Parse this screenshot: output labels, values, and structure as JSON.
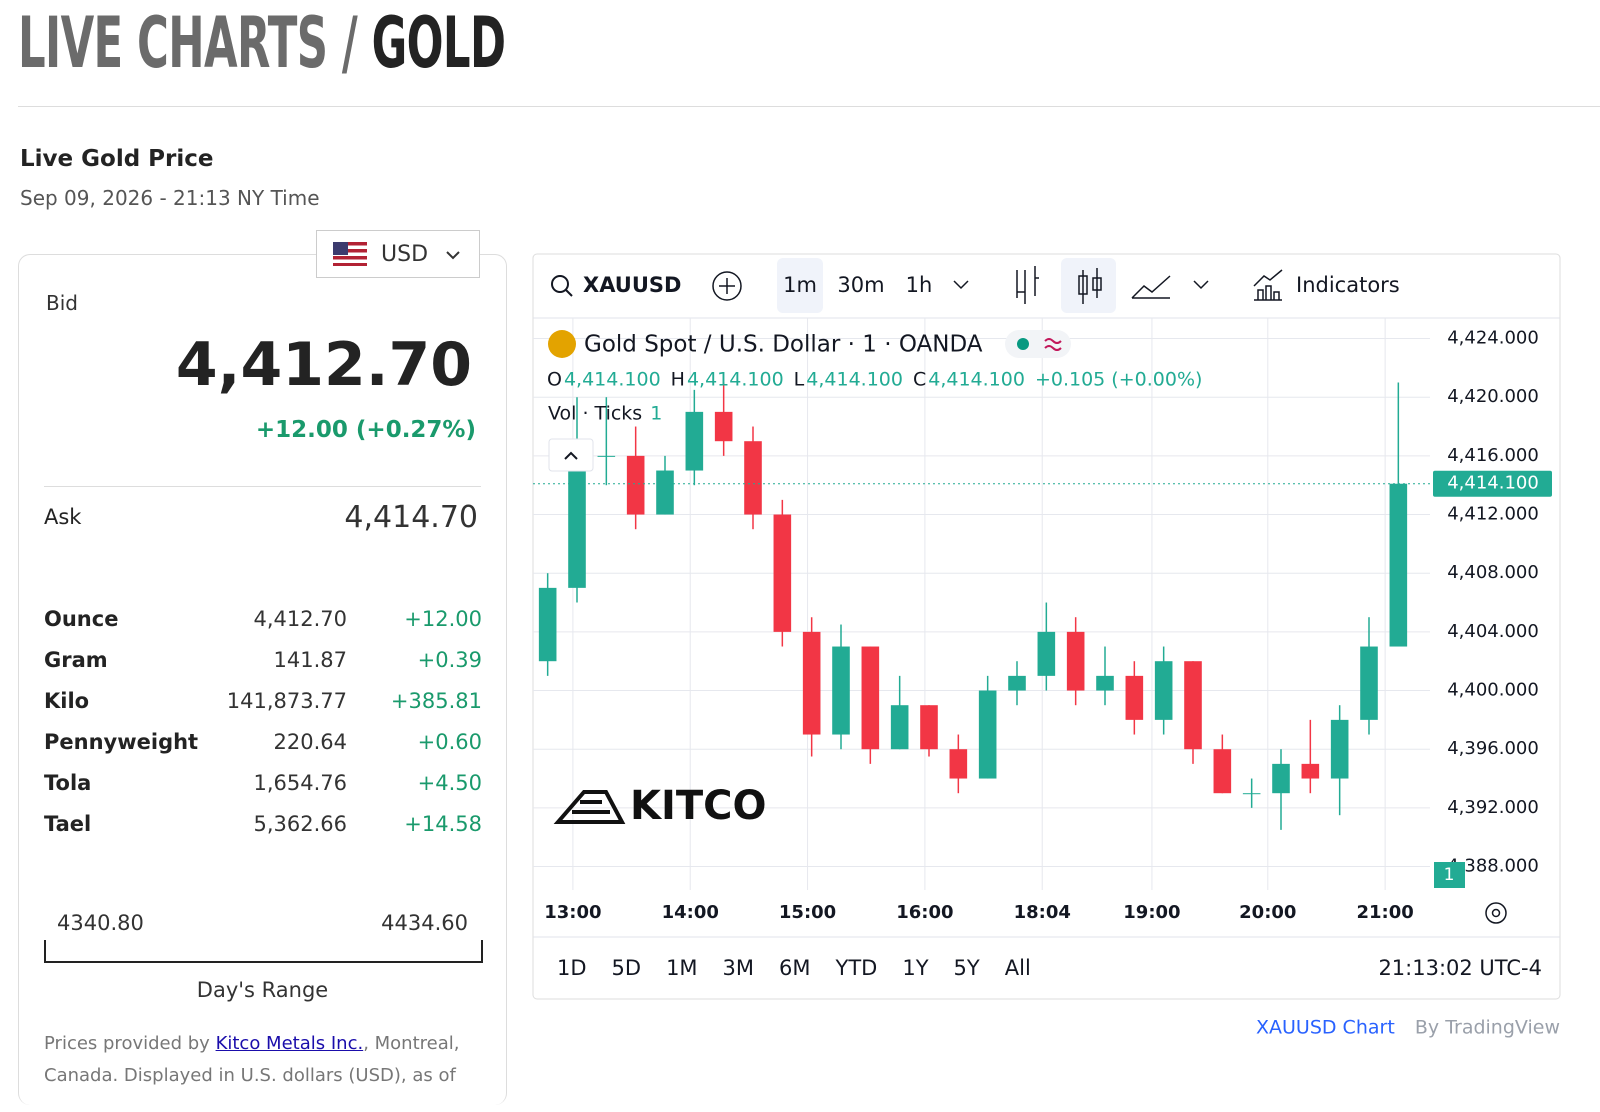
{
  "header": {
    "title_gray": "LIVE CHARTS /",
    "title_dark": "GOLD"
  },
  "price_panel": {
    "title": "Live Gold Price",
    "timestamp": "Sep 09, 2026 - 21:13 NY Time",
    "currency": "USD",
    "bid_label": "Bid",
    "bid": "4,412.70",
    "change": "+12.00 (+0.27%)",
    "ask_label": "Ask",
    "ask": "4,414.70",
    "rows": [
      [
        "Ounce",
        "4,412.70",
        "+12.00"
      ],
      [
        "Gram",
        "141.87",
        "+0.39"
      ],
      [
        "Kilo",
        "141,873.77",
        "+385.81"
      ],
      [
        "Pennyweight",
        "220.64",
        "+0.60"
      ],
      [
        "Tola",
        "1,654.76",
        "+4.50"
      ],
      [
        "Tael",
        "5,362.66",
        "+14.58"
      ]
    ],
    "range_low": "4340.80",
    "range_high": "4434.60",
    "range_label": "Day's Range",
    "note_prefix": "Prices provided by ",
    "note_link": "Kitco Metals Inc.",
    "note_suffix": ", Montreal, Canada. Displayed in U.S. dollars (USD), as of"
  },
  "toolbar": {
    "symbol": "XAUUSD",
    "intervals": [
      "1m",
      "30m",
      "1h"
    ],
    "indicators": "Indicators"
  },
  "chart_data": {
    "type": "candlestick",
    "legend": {
      "name": "Gold Spot / U.S. Dollar · 1 · OANDA",
      "o": "O",
      "o_val": "4,414.100",
      "h": "H",
      "h_val": "4,414.100",
      "l": "L",
      "l_val": "4,414.100",
      "c": "C",
      "c_val": "4,414.100",
      "change": "+0.105 (+0.00%)",
      "vol": "Vol · Ticks",
      "vol_val": "1"
    },
    "watermark": "KITCO",
    "badge": "1",
    "up_color": "#22ab94",
    "down_color": "#f23645",
    "open": [
      4402,
      4407,
      4416,
      4416,
      4412,
      4415,
      4419,
      4417,
      4412,
      4404,
      4397,
      4403,
      4396,
      4399,
      4396,
      4394,
      4400,
      4401,
      4404,
      4400,
      4401,
      4398,
      4402,
      4396,
      4393,
      4393,
      4395,
      4394,
      4398,
      4403
    ],
    "high": [
      4408,
      4420,
      4420,
      4418,
      4416,
      4420.5,
      4421,
      4418,
      4413,
      4405,
      4404.5,
      4403,
      4401,
      4399,
      4397,
      4401,
      4402,
      4406,
      4405,
      4403,
      4402,
      4403,
      4402,
      4397,
      4394,
      4396,
      4398,
      4399,
      4405,
      4421
    ],
    "low": [
      4401,
      4406,
      4414,
      4411,
      4412,
      4414,
      4416,
      4411,
      4403,
      4395.5,
      4396,
      4395,
      4396,
      4395.5,
      4393,
      4394,
      4399,
      4400,
      4399,
      4399,
      4397,
      4397,
      4395,
      4393,
      4392,
      4390.5,
      4393,
      4391.5,
      4397,
      4403
    ],
    "close": [
      4407,
      4416,
      4416,
      4412,
      4415,
      4419,
      4417,
      4412,
      4404,
      4397,
      4403,
      4396,
      4399,
      4396,
      4394,
      4400,
      4401,
      4404,
      4400,
      4401,
      4398,
      4402,
      4396,
      4393,
      4393,
      4395,
      4394,
      4398,
      4403,
      4414.1
    ],
    "last_price": {
      "value": 4414.1,
      "label": "4,414.100"
    },
    "xlim": [
      0,
      30
    ],
    "xticks": [
      {
        "value": 1.36,
        "label": "13:00"
      },
      {
        "value": 5.36,
        "label": "14:00"
      },
      {
        "value": 9.36,
        "label": "15:00"
      },
      {
        "value": 13.36,
        "label": "16:00"
      },
      {
        "value": 17.36,
        "label": "18:04"
      },
      {
        "value": 21.1,
        "label": "19:00"
      },
      {
        "value": 25.05,
        "label": "20:00"
      },
      {
        "value": 29.05,
        "label": "21:00"
      }
    ],
    "ylim": [
      4386.4,
      4425.4
    ],
    "yticks": [
      {
        "value": 4388,
        "label": "4,388.000"
      },
      {
        "value": 4392,
        "label": "4,392.000"
      },
      {
        "value": 4396,
        "label": "4,396.000"
      },
      {
        "value": 4400,
        "label": "4,400.000"
      },
      {
        "value": 4404,
        "label": "4,404.000"
      },
      {
        "value": 4408,
        "label": "4,408.000"
      },
      {
        "value": 4412,
        "label": "4,412.000"
      },
      {
        "value": 4416,
        "label": "4,416.000"
      },
      {
        "value": 4420,
        "label": "4,420.000"
      },
      {
        "value": 4424,
        "label": "4,424.000"
      }
    ],
    "grid": true,
    "ranges": [
      "1D",
      "5D",
      "1M",
      "3M",
      "6M",
      "YTD",
      "1Y",
      "5Y",
      "All"
    ],
    "clock": "21:13:02 UTC-4"
  },
  "footer": {
    "chart_link": "XAUUSD Chart",
    "by": "By TradingView"
  }
}
